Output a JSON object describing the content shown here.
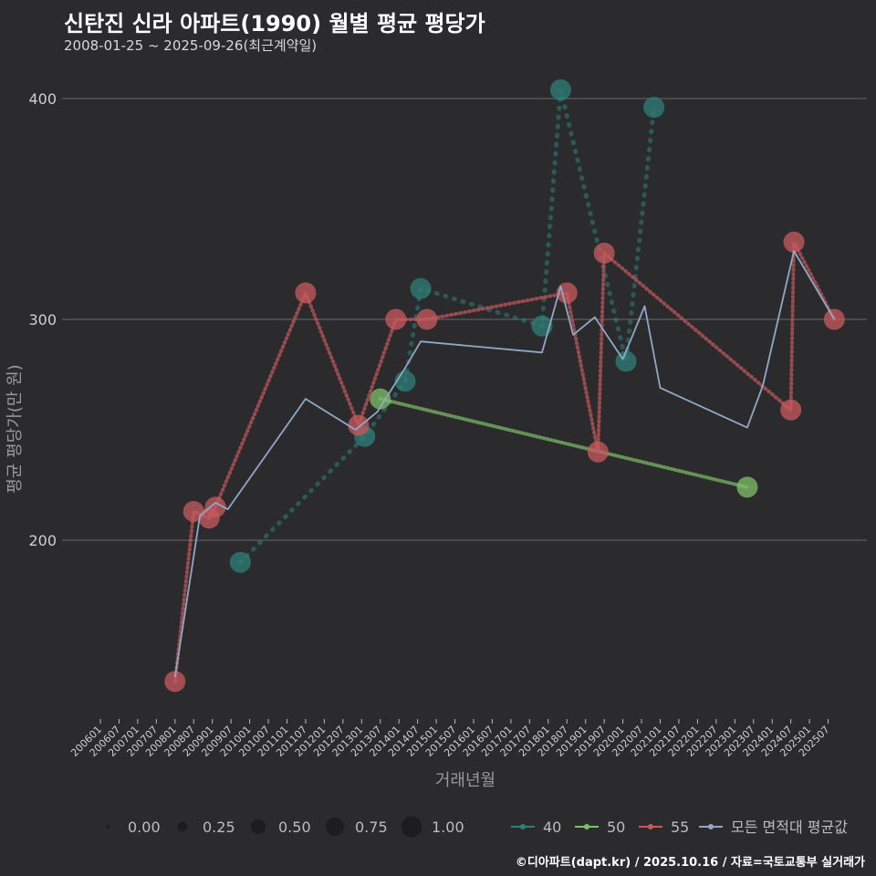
{
  "title": "신탄진 신라 아파트(1990) 월별 평균 평당가",
  "subtitle": "2008-01-25 ~ 2025-09-26(최근계약일)",
  "caption": "©디아파트(dapt.kr) / 2025.10.16 / 자료=국토교통부 실거래가",
  "colors": {
    "background": "#2b2b2d",
    "grid": "#6a6a6a",
    "s40": "#2e7f78",
    "s50": "#7fc06a",
    "s55": "#c85a5e",
    "avg": "#8fa8c8"
  },
  "chart_data": {
    "type": "line",
    "xlabel": "거래년월",
    "ylabel": "평균 평당가(만 원)",
    "ylim": [
      125,
      410
    ],
    "yticks": [
      200,
      300,
      400
    ],
    "xticks": [
      "200601",
      "200607",
      "200701",
      "200707",
      "200801",
      "200807",
      "200901",
      "200907",
      "201001",
      "201007",
      "201101",
      "201107",
      "201201",
      "201207",
      "201301",
      "201307",
      "201401",
      "201407",
      "201501",
      "201507",
      "201601",
      "201607",
      "201701",
      "201707",
      "201801",
      "201807",
      "201901",
      "201907",
      "202001",
      "202007",
      "202101",
      "202107",
      "202201",
      "202207",
      "202301",
      "202307",
      "202401",
      "202407",
      "202501",
      "202507"
    ],
    "grid": true,
    "legend_position": "bottom",
    "size_legend": {
      "values": [
        "0.00",
        "0.25",
        "0.50",
        "0.75",
        "1.00"
      ]
    },
    "series": [
      {
        "name": "40",
        "color": "#2e7f78",
        "points": [
          [
            "2009-10",
            190
          ],
          [
            "2013-02",
            247
          ],
          [
            "2014-03",
            272
          ],
          [
            "2014-08",
            314
          ],
          [
            "2017-11",
            297
          ],
          [
            "2018-05",
            404
          ],
          [
            "2020-02",
            281
          ],
          [
            "2020-11",
            396
          ]
        ]
      },
      {
        "name": "50",
        "color": "#7fc06a",
        "points": [
          [
            "2013-07",
            264
          ],
          [
            "2023-05",
            224
          ]
        ]
      },
      {
        "name": "55",
        "color": "#c85a5e",
        "points": [
          [
            "2008-01",
            136
          ],
          [
            "2008-07",
            213
          ],
          [
            "2008-12",
            210
          ],
          [
            "2009-02",
            215
          ],
          [
            "2011-07",
            312
          ],
          [
            "2012-12",
            252
          ],
          [
            "2013-12",
            300
          ],
          [
            "2014-10",
            300
          ],
          [
            "2018-07",
            312
          ],
          [
            "2019-05",
            240
          ],
          [
            "2019-07",
            330
          ],
          [
            "2024-07",
            259
          ],
          [
            "2024-08",
            335
          ],
          [
            "2025-09",
            300
          ]
        ]
      },
      {
        "name": "모든 면적대 평균값",
        "color": "#8fa8c8",
        "points": [
          [
            "2008-01",
            138
          ],
          [
            "2008-09",
            211
          ],
          [
            "2009-02",
            217
          ],
          [
            "2009-06",
            214
          ],
          [
            "2011-07",
            264
          ],
          [
            "2012-11",
            250
          ],
          [
            "2013-06",
            258
          ],
          [
            "2014-03",
            278
          ],
          [
            "2014-08",
            290
          ],
          [
            "2017-11",
            285
          ],
          [
            "2018-05",
            315
          ],
          [
            "2018-09",
            293
          ],
          [
            "2019-04",
            301
          ],
          [
            "2020-01",
            282
          ],
          [
            "2020-08",
            306
          ],
          [
            "2021-01",
            269
          ],
          [
            "2023-05",
            251
          ],
          [
            "2023-10",
            270
          ],
          [
            "2024-08",
            331
          ],
          [
            "2025-09",
            300
          ]
        ]
      }
    ]
  }
}
